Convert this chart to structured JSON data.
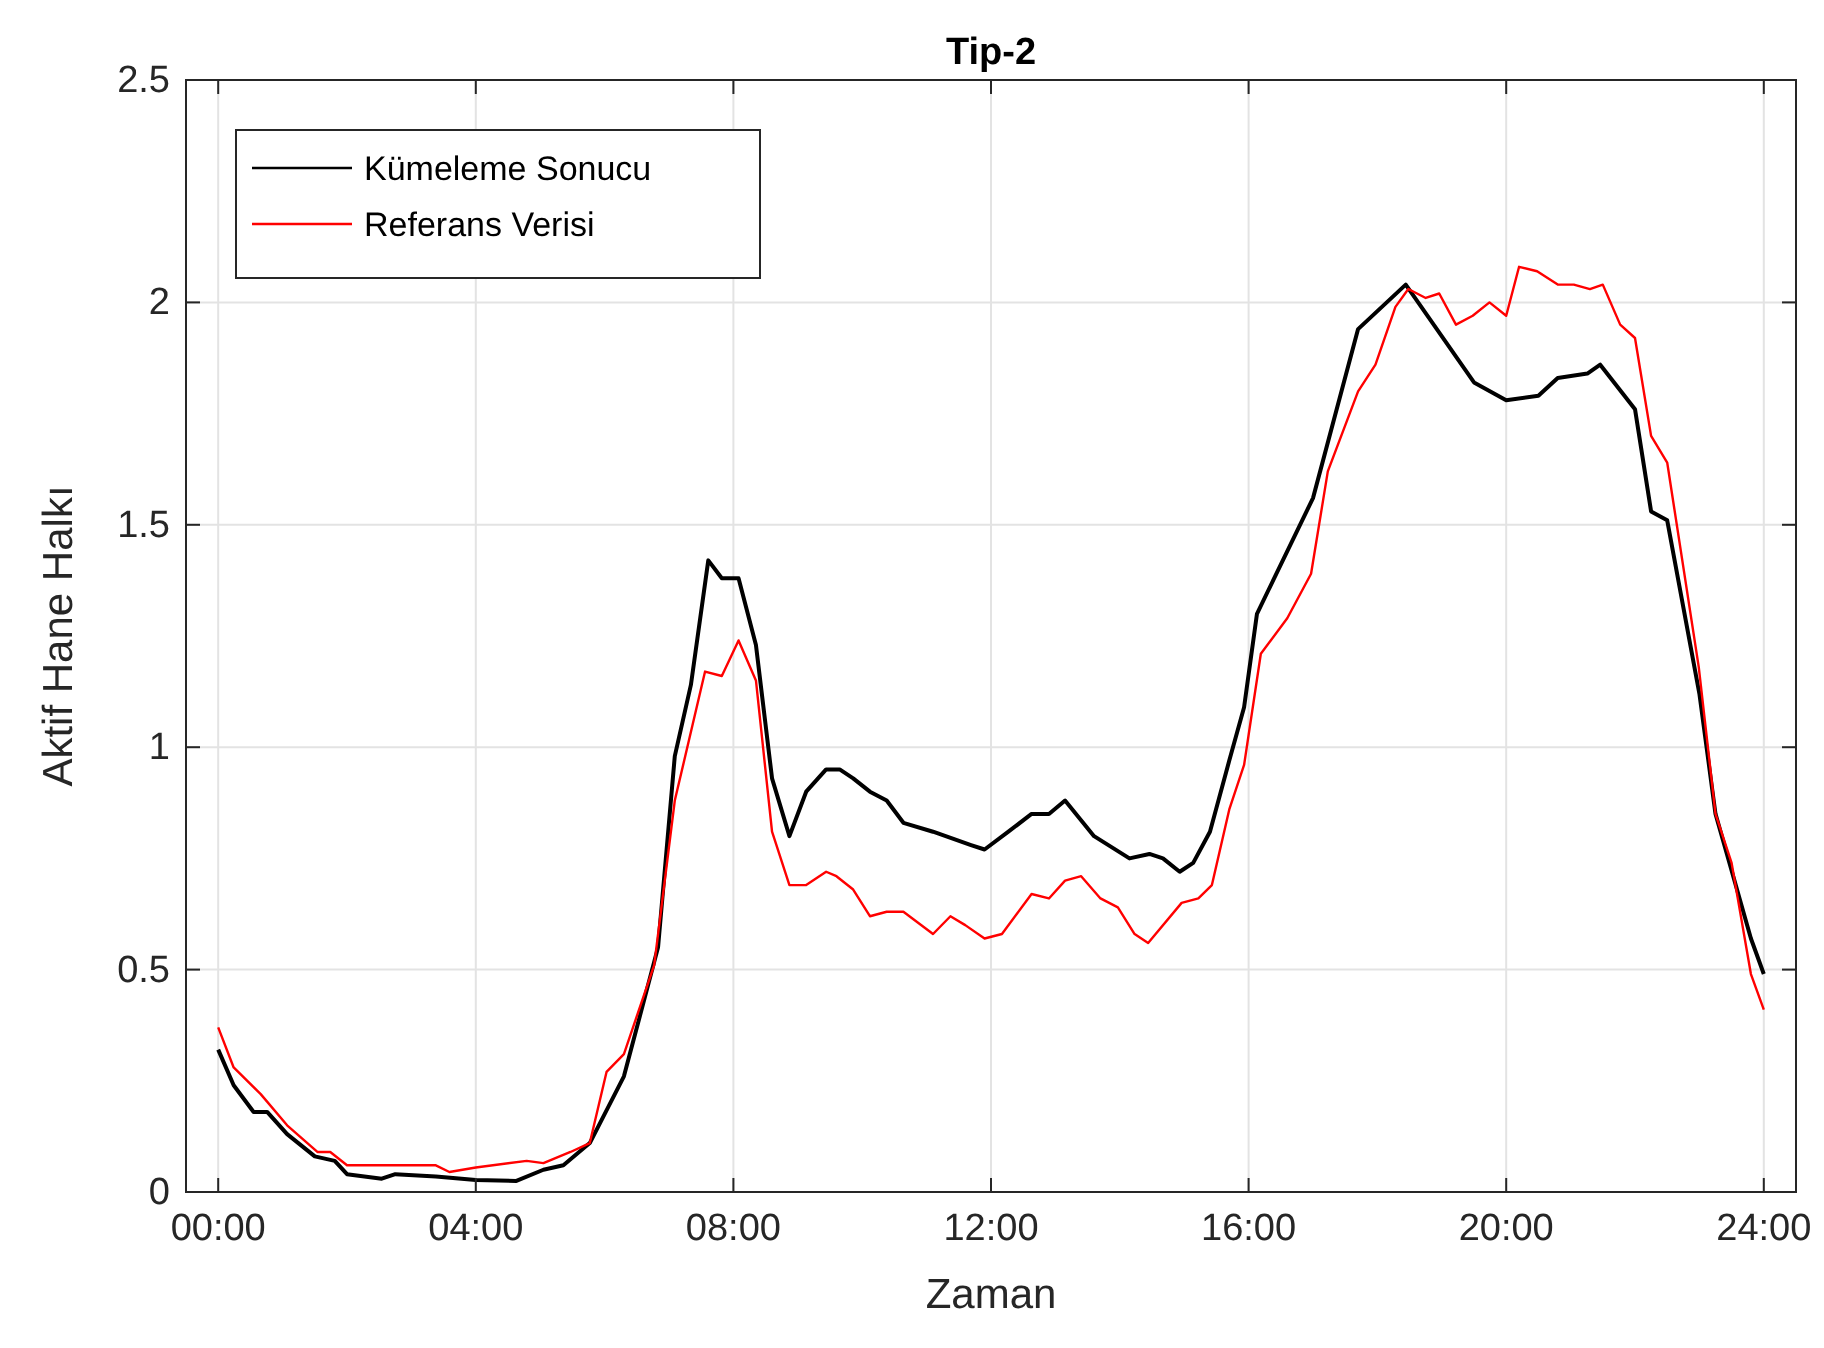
{
  "chart_data": {
    "type": "line",
    "title": "Tip-2",
    "xlabel": "Zaman",
    "ylabel": "Aktif Hane Halkı",
    "xlim": [
      -0.5,
      24.5
    ],
    "ylim": [
      0,
      2.5
    ],
    "xticks": [
      {
        "value": 0,
        "label": "00:00"
      },
      {
        "value": 4,
        "label": "04:00"
      },
      {
        "value": 8,
        "label": "08:00"
      },
      {
        "value": 12,
        "label": "12:00"
      },
      {
        "value": 16,
        "label": "16:00"
      },
      {
        "value": 20,
        "label": "20:00"
      },
      {
        "value": 24,
        "label": "24:00"
      }
    ],
    "yticks": [
      0,
      0.5,
      1,
      1.5,
      2,
      2.5
    ],
    "grid": true,
    "legend": "top left",
    "series": [
      {
        "name": "Kümeleme Sonucu",
        "color": "#000000",
        "x": [
          0,
          0.24,
          0.55,
          0.76,
          1.07,
          1.5,
          1.81,
          2.0,
          2.54,
          2.75,
          3.38,
          4.0,
          4.63,
          5.05,
          5.36,
          5.77,
          6.3,
          6.83,
          7.09,
          7.34,
          7.61,
          7.82,
          8.08,
          8.35,
          8.6,
          8.87,
          9.13,
          9.44,
          9.65,
          9.86,
          10.12,
          10.38,
          10.64,
          11.1,
          11.69,
          11.9,
          12.27,
          12.63,
          12.9,
          13.15,
          13.6,
          14.15,
          14.46,
          14.67,
          14.93,
          15.14,
          15.4,
          15.7,
          15.93,
          16.13,
          17.0,
          17.7,
          18.44,
          19.5,
          20.0,
          20.5,
          20.8,
          21.26,
          21.46,
          22.0,
          22.25,
          22.5,
          23.0,
          23.25,
          23.8,
          24.0
        ],
        "values": [
          0.32,
          0.24,
          0.18,
          0.18,
          0.13,
          0.08,
          0.07,
          0.04,
          0.03,
          0.04,
          0.035,
          0.027,
          0.025,
          0.05,
          0.06,
          0.11,
          0.26,
          0.55,
          0.98,
          1.14,
          1.42,
          1.38,
          1.38,
          1.23,
          0.93,
          0.8,
          0.9,
          0.95,
          0.95,
          0.93,
          0.9,
          0.88,
          0.83,
          0.81,
          0.78,
          0.77,
          0.81,
          0.85,
          0.85,
          0.88,
          0.8,
          0.75,
          0.76,
          0.75,
          0.72,
          0.74,
          0.81,
          0.97,
          1.09,
          1.3,
          1.56,
          1.94,
          2.04,
          1.82,
          1.78,
          1.79,
          1.83,
          1.84,
          1.86,
          1.76,
          1.53,
          1.51,
          1.12,
          0.85,
          0.57,
          0.49
        ]
      },
      {
        "name": "Referans Verisi",
        "color": "#ff0000",
        "x": [
          0,
          0.24,
          0.66,
          1.07,
          1.54,
          1.74,
          2.0,
          2.54,
          3.38,
          3.59,
          4.0,
          4.79,
          5.05,
          5.47,
          5.77,
          6.03,
          6.3,
          6.77,
          7.09,
          7.56,
          7.82,
          8.08,
          8.35,
          8.6,
          8.87,
          9.13,
          9.44,
          9.6,
          9.86,
          10.12,
          10.38,
          10.64,
          11.1,
          11.37,
          11.6,
          11.9,
          12.17,
          12.63,
          12.9,
          13.15,
          13.4,
          13.7,
          13.97,
          14.23,
          14.44,
          14.96,
          15.22,
          15.43,
          15.7,
          15.93,
          16.19,
          16.6,
          16.97,
          17.23,
          17.7,
          17.97,
          18.28,
          18.48,
          18.75,
          18.96,
          19.22,
          19.48,
          19.74,
          20.0,
          20.2,
          20.48,
          20.8,
          21.05,
          21.3,
          21.5,
          21.77,
          22.0,
          22.25,
          22.5,
          22.99,
          23.25,
          23.5,
          23.8,
          24.0
        ],
        "values": [
          0.37,
          0.28,
          0.22,
          0.15,
          0.09,
          0.09,
          0.06,
          0.06,
          0.06,
          0.045,
          0.055,
          0.07,
          0.065,
          0.09,
          0.11,
          0.27,
          0.31,
          0.51,
          0.88,
          1.17,
          1.16,
          1.24,
          1.15,
          0.81,
          0.69,
          0.69,
          0.72,
          0.71,
          0.68,
          0.62,
          0.63,
          0.63,
          0.58,
          0.62,
          0.6,
          0.57,
          0.58,
          0.67,
          0.66,
          0.7,
          0.71,
          0.66,
          0.64,
          0.58,
          0.56,
          0.65,
          0.66,
          0.69,
          0.86,
          0.96,
          1.21,
          1.29,
          1.39,
          1.62,
          1.8,
          1.86,
          1.99,
          2.03,
          2.01,
          2.02,
          1.95,
          1.97,
          2.0,
          1.97,
          2.08,
          2.07,
          2.04,
          2.04,
          2.03,
          2.04,
          1.95,
          1.92,
          1.7,
          1.64,
          1.18,
          0.85,
          0.74,
          0.49,
          0.41
        ]
      }
    ]
  }
}
